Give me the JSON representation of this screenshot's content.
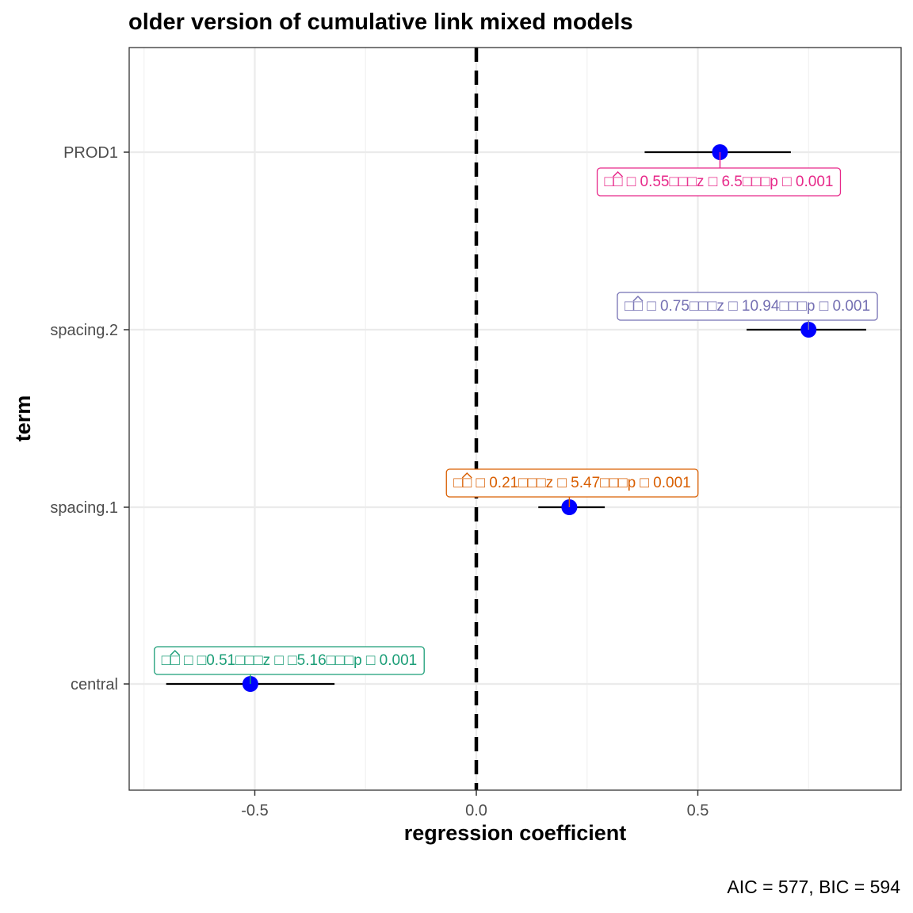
{
  "chart_data": {
    "type": "scatter",
    "title": "older version of cumulative link mixed models",
    "xlabel": "regression coefficient",
    "ylabel": "term",
    "caption": "AIC = 577, BIC = 594",
    "xlim": [
      -0.75,
      0.92
    ],
    "x_ticks": [
      -0.5,
      0.0,
      0.5
    ],
    "x_tick_labels": [
      "-0.5",
      "0.0",
      "0.5"
    ],
    "categories": [
      "central",
      "spacing.1",
      "spacing.2",
      "PROD1"
    ],
    "grid": true,
    "reference_line": 0,
    "point_color": "#0000ff",
    "terms": [
      {
        "name": "central",
        "estimate": -0.51,
        "conf_low": -0.7,
        "conf_high": -0.32,
        "label": "□□ □ □0.51□□□z □ □5.16□□□p □ 0.001",
        "label_color": "#1b9e77"
      },
      {
        "name": "spacing.1",
        "estimate": 0.21,
        "conf_low": 0.14,
        "conf_high": 0.29,
        "label": "□□ □ 0.21□□□z □ 5.47□□□p □ 0.001",
        "label_color": "#d95f02"
      },
      {
        "name": "spacing.2",
        "estimate": 0.75,
        "conf_low": 0.61,
        "conf_high": 0.88,
        "label": "□□ □ 0.75□□□z □ 10.94□□□p □ 0.001",
        "label_color": "#7570b3"
      },
      {
        "name": "PROD1",
        "estimate": 0.55,
        "conf_low": 0.38,
        "conf_high": 0.71,
        "label": "□□ □ 0.55□□□z □ 6.5□□□p □ 0.001",
        "label_color": "#e7298a"
      }
    ]
  }
}
